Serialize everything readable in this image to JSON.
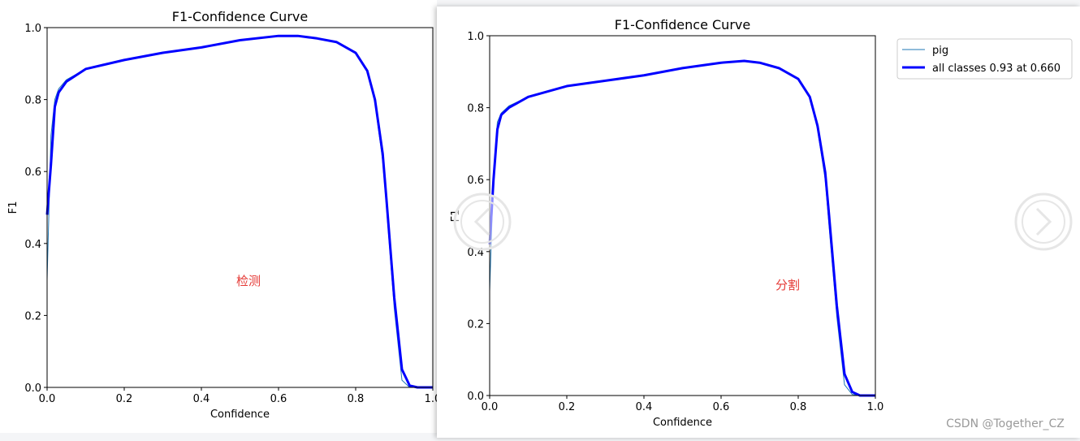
{
  "chart_data": [
    {
      "type": "line",
      "title": "F1-Confidence Curve",
      "xlabel": "Confidence",
      "ylabel": "F1",
      "annotation": "检测",
      "x": [
        0,
        0.01,
        0.02,
        0.03,
        0.05,
        0.1,
        0.2,
        0.3,
        0.4,
        0.5,
        0.6,
        0.65,
        0.7,
        0.75,
        0.8,
        0.83,
        0.85,
        0.87,
        0.88,
        0.9,
        0.92,
        0.94,
        0.96,
        1.0
      ],
      "series": [
        {
          "color": "#1f77b4",
          "width": 1,
          "values": [
            0.3,
            0.7,
            0.8,
            0.83,
            0.855,
            0.885,
            0.91,
            0.93,
            0.945,
            0.965,
            0.977,
            0.977,
            0.97,
            0.96,
            0.93,
            0.88,
            0.79,
            0.63,
            0.5,
            0.22,
            0.02,
            0,
            0,
            0
          ]
        },
        {
          "color": "#0000ff",
          "width": 3,
          "values": [
            0.48,
            0.62,
            0.78,
            0.82,
            0.85,
            0.885,
            0.91,
            0.93,
            0.945,
            0.965,
            0.977,
            0.977,
            0.97,
            0.96,
            0.93,
            0.88,
            0.8,
            0.65,
            0.52,
            0.25,
            0.05,
            0.005,
            0,
            0
          ]
        }
      ],
      "xlim": [
        0,
        1
      ],
      "ylim": [
        0,
        1
      ],
      "xticks": [
        {
          "value": 0,
          "label": "0.0"
        },
        0.2,
        0.4,
        0.6,
        0.8,
        {
          "value": 1,
          "label": "1.0"
        }
      ],
      "yticks": [
        {
          "value": 0,
          "label": "0.0"
        },
        0.2,
        0.4,
        0.6,
        0.8,
        {
          "value": 1,
          "label": "1.0"
        }
      ]
    },
    {
      "type": "line",
      "title": "F1-Confidence Curve",
      "xlabel": "Confidence",
      "ylabel": "F1",
      "annotation": "分割",
      "legend": "outside upper right",
      "x": [
        0,
        0.01,
        0.02,
        0.03,
        0.05,
        0.1,
        0.2,
        0.3,
        0.4,
        0.5,
        0.6,
        0.66,
        0.7,
        0.75,
        0.8,
        0.83,
        0.85,
        0.87,
        0.88,
        0.9,
        0.92,
        0.94,
        0.96,
        1.0
      ],
      "series": [
        {
          "name": "pig",
          "color": "#1f77b4",
          "width": 1,
          "values": [
            0.29,
            0.62,
            0.76,
            0.785,
            0.805,
            0.83,
            0.86,
            0.875,
            0.89,
            0.91,
            0.925,
            0.93,
            0.925,
            0.91,
            0.88,
            0.83,
            0.74,
            0.6,
            0.47,
            0.22,
            0.03,
            0.003,
            0,
            0
          ]
        },
        {
          "name": "all classes 0.93 at 0.660",
          "color": "#0000ff",
          "width": 3,
          "values": [
            0.42,
            0.6,
            0.74,
            0.78,
            0.8,
            0.83,
            0.86,
            0.875,
            0.89,
            0.91,
            0.925,
            0.93,
            0.925,
            0.91,
            0.88,
            0.83,
            0.75,
            0.62,
            0.5,
            0.25,
            0.06,
            0.01,
            0,
            0
          ]
        }
      ],
      "xlim": [
        0,
        1
      ],
      "ylim": [
        0,
        1
      ],
      "xticks": [
        {
          "value": 0,
          "label": "0.0"
        },
        0.2,
        0.4,
        0.6,
        0.8,
        {
          "value": 1,
          "label": "1.0"
        }
      ],
      "yticks": [
        {
          "value": 0,
          "label": "0.0"
        },
        0.2,
        0.4,
        0.6,
        0.8,
        {
          "value": 1,
          "label": "1.0"
        }
      ]
    }
  ],
  "watermark": "CSDN @Together_CZ"
}
